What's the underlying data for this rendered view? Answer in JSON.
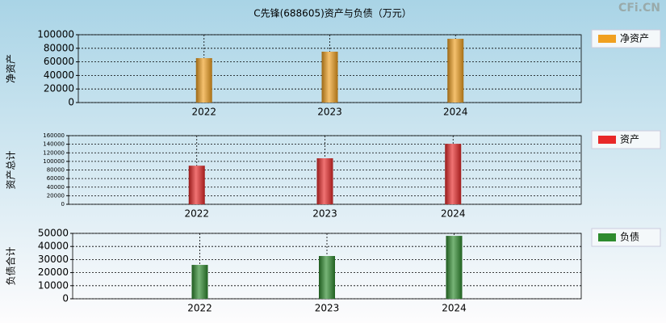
{
  "title": "C先锋(688605)资产与负债（万元）",
  "watermark": "CFi.CN",
  "chart_data": [
    {
      "type": "bar",
      "ylabel": "净资产",
      "categories": [
        "2022",
        "2023",
        "2024"
      ],
      "series": [
        {
          "name": "净资产",
          "color": "#f0a020",
          "values": [
            65500,
            75000,
            94000
          ]
        }
      ],
      "ylim": [
        0,
        100000
      ],
      "yticks": [
        0,
        20000,
        40000,
        60000,
        80000,
        100000
      ],
      "grid": true,
      "legend": "right"
    },
    {
      "type": "bar",
      "ylabel": "资产总计",
      "categories": [
        "2022",
        "2023",
        "2024"
      ],
      "series": [
        {
          "name": "资产",
          "color": "#e82828",
          "values": [
            90000,
            107300,
            141000
          ]
        }
      ],
      "ylim": [
        0,
        160000
      ],
      "yticks": [
        0,
        20000,
        40000,
        60000,
        80000,
        100000,
        120000,
        140000,
        160000
      ],
      "grid": true,
      "legend": "right"
    },
    {
      "type": "bar",
      "ylabel": "负债合计",
      "categories": [
        "2022",
        "2023",
        "2024"
      ],
      "series": [
        {
          "name": "负债",
          "color": "#2e8b2e",
          "values": [
            25900,
            32700,
            48100
          ]
        }
      ],
      "ylim": [
        0,
        50000
      ],
      "yticks": [
        0,
        10000,
        20000,
        30000,
        40000,
        50000
      ],
      "grid": true,
      "legend": "right"
    }
  ]
}
